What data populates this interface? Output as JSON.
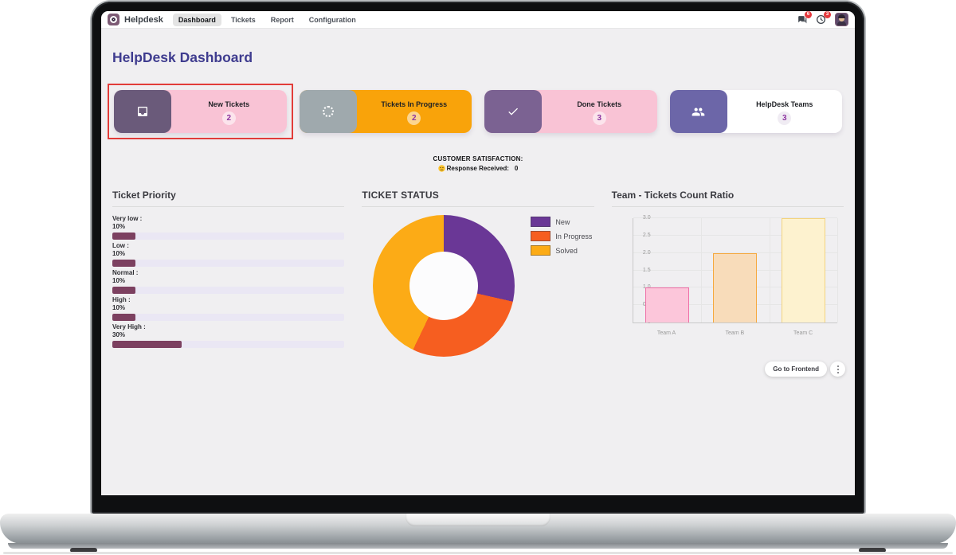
{
  "theme": {
    "highlight_border": "#e23c39",
    "title_color": "#3f3c8f",
    "count_text_color": "#8d35a0"
  },
  "navbar": {
    "app_name": "Helpdesk",
    "menu": [
      {
        "label": "Dashboard",
        "active": true
      },
      {
        "label": "Tickets",
        "active": false
      },
      {
        "label": "Report",
        "active": false
      },
      {
        "label": "Configuration",
        "active": false
      }
    ],
    "messages_badge": "6",
    "activities_badge": "3"
  },
  "page_title": "HelpDesk Dashboard",
  "kpi_cards": [
    {
      "title": "New Tickets",
      "count": "2",
      "icon": "inbox",
      "icon_color": "#6a5a7a",
      "body_color": "#f9c3d5",
      "count_bg": "rgba(255,255,255,0.55)",
      "highlighted": true
    },
    {
      "title": "Tickets In Progress",
      "count": "2",
      "icon": "spinner",
      "icon_color": "#9fa9ad",
      "body_color": "#f9a30a",
      "count_bg": "rgba(255,255,255,0.55)",
      "highlighted": false
    },
    {
      "title": "Done Tickets",
      "count": "3",
      "icon": "check",
      "icon_color": "#7b6292",
      "body_color": "#f9c3d5",
      "count_bg": "rgba(255,255,255,0.55)",
      "highlighted": false
    },
    {
      "title": "HelpDesk Teams",
      "count": "3",
      "icon": "users",
      "icon_color": "#6c66a8",
      "body_color": "#ffffff",
      "count_bg": "rgba(128,100,160,0.12)",
      "highlighted": false
    }
  ],
  "satisfaction": {
    "heading": "CUSTOMER SATISFACTION:",
    "response_label": "Response Received:",
    "response_value": "0"
  },
  "chart_data": [
    {
      "type": "bar",
      "orientation": "horizontal",
      "title": "Ticket Priority",
      "categories": [
        "Very low",
        "Low",
        "Normal",
        "High",
        "Very High"
      ],
      "values": [
        10,
        10,
        10,
        10,
        30
      ],
      "unit": "%",
      "xlim": [
        0,
        100
      ],
      "bar_color": "#7c4060",
      "track_color": "#eae7f4"
    },
    {
      "type": "pie",
      "donut": true,
      "title": "TICKET STATUS",
      "labels": [
        "New",
        "In Progress",
        "Solved"
      ],
      "values": [
        2,
        2,
        3
      ],
      "colors": [
        "#6a3796",
        "#f65e20",
        "#fcab16"
      ],
      "legend_position": "right"
    },
    {
      "type": "bar",
      "title": "Team - Tickets Count Ratio",
      "categories": [
        "Team A",
        "Team B",
        "Team C"
      ],
      "values": [
        1,
        2,
        3
      ],
      "bar_fill": [
        "#fcc6da",
        "#f8dcba",
        "#fdf2cf"
      ],
      "bar_border": [
        "#ef6fa7",
        "#f6a93f",
        "#f3d37e"
      ],
      "ylim": [
        0,
        3
      ],
      "yticks": [
        0,
        0.5,
        1.0,
        1.5,
        2.0,
        2.5,
        3.0
      ],
      "grid": true
    }
  ],
  "footer": {
    "go_to_frontend_label": "Go to Frontend"
  }
}
